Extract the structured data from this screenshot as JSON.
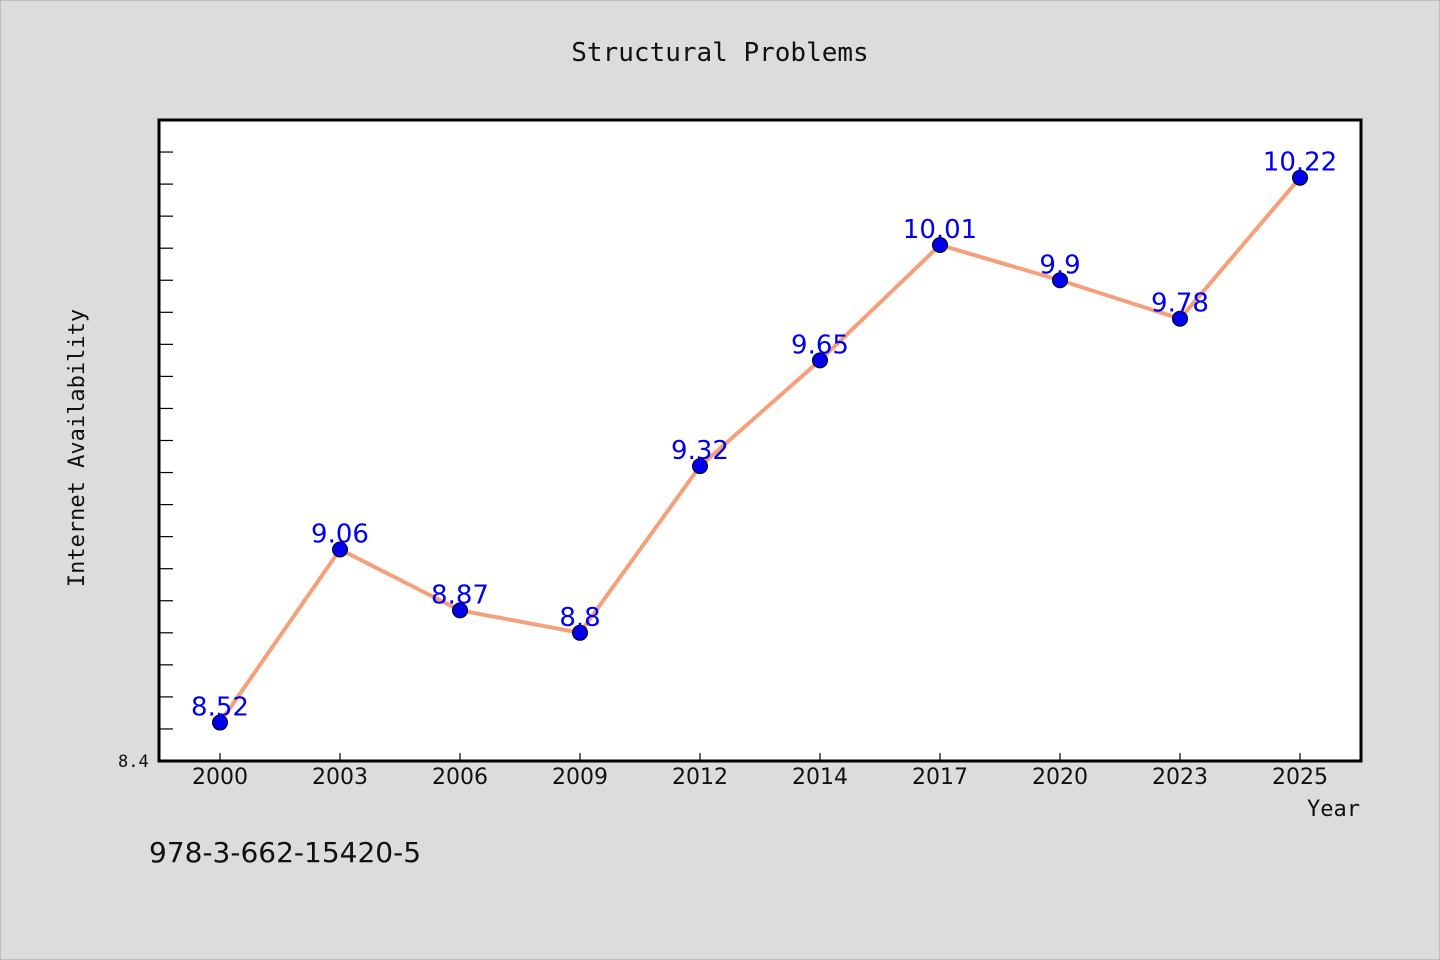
{
  "chart_data": {
    "type": "line",
    "title": "Structural Problems",
    "xlabel": "Year",
    "ylabel": "Internet Availability",
    "categories": [
      "2000",
      "2003",
      "2006",
      "2009",
      "2012",
      "2014",
      "2017",
      "2020",
      "2023",
      "2025"
    ],
    "series": [
      {
        "values": [
          8.52,
          9.06,
          8.87,
          8.8,
          9.32,
          9.65,
          10.01,
          9.9,
          9.78,
          10.22
        ],
        "labels": [
          "8.52",
          "9.06",
          "8.87",
          "8.8",
          "9.32",
          "9.65",
          "10.01",
          "9.9",
          "9.78",
          "10.22"
        ],
        "line_color": "#f4a07a",
        "marker_color": "#0000ee",
        "label_color": "#0000ee"
      }
    ],
    "ylim": [
      8.4,
      10.4
    ],
    "y_tick_label": "8.4",
    "grid": false,
    "legend": "none"
  },
  "footer": {
    "isbn": "978-3-662-15420-5"
  },
  "colors": {
    "background": "#dcdcdc",
    "plot_background": "#ffffff"
  }
}
